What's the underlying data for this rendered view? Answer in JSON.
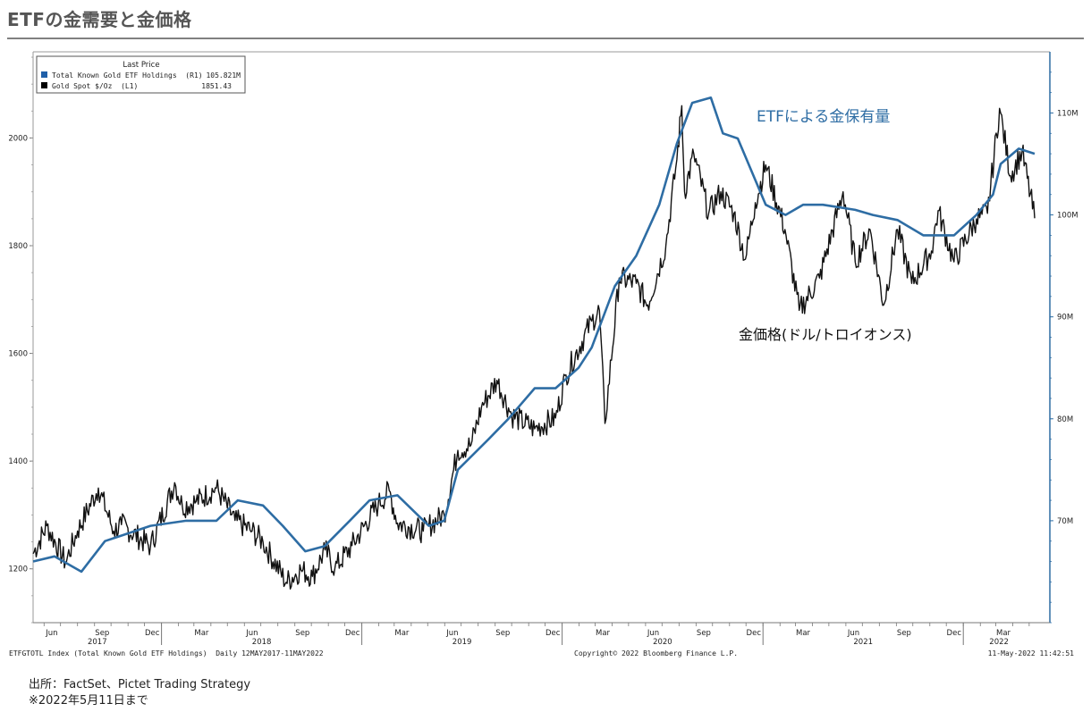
{
  "page": {
    "title": "ETFの金需要と金価格",
    "source": "出所：FactSet、Pictet Trading Strategy",
    "note": "※2022年5月11日まで"
  },
  "colors": {
    "etf": "#2e6da4",
    "gold": "#111111",
    "axis": "#2e6da4",
    "rule": "#808080"
  },
  "chart_data": {
    "type": "line",
    "legend": {
      "header": "Last Price",
      "items": [
        {
          "name": "Total Known Gold ETF Holdings  (R1)",
          "value": "105.821M",
          "color": "#1f5fa8"
        },
        {
          "name": "Gold Spot $/Oz  (L1)",
          "value": "1851.43",
          "color": "#000000"
        }
      ],
      "placement": "top-left"
    },
    "annotations": {
      "etf": "ETFによる金保有量",
      "gold": "金価格(ドル/トロイオンス)"
    },
    "x_axis": {
      "months": [
        "Jun",
        "Sep",
        "Dec",
        "Mar",
        "Jun",
        "Sep",
        "Dec",
        "Mar",
        "Jun",
        "Sep",
        "Dec",
        "Mar",
        "Jun",
        "Sep",
        "Dec",
        "Mar",
        "Jun",
        "Sep",
        "Dec",
        "Mar"
      ],
      "years": [
        "2017",
        "2018",
        "2019",
        "2020",
        "2021",
        "2022"
      ],
      "range": [
        "2017-05-12",
        "2022-05-11"
      ]
    },
    "y_left": {
      "ticks": [
        "1200",
        "1400",
        "1600",
        "1800",
        "2000"
      ],
      "values": [
        1200,
        1400,
        1600,
        1800,
        2000
      ],
      "ylim": [
        1100,
        2160
      ]
    },
    "y_right": {
      "ticks": [
        "70M",
        "80M",
        "90M",
        "100M",
        "110M"
      ],
      "values": [
        70,
        80,
        90,
        100,
        110
      ],
      "ylim": [
        60,
        116
      ]
    },
    "footer": {
      "left": "ETFGTOTL Index (Total Known Gold ETF Holdings)  Daily 12MAY2017-11MAY2022",
      "center": "Copyright© 2022 Bloomberg Finance L.P.",
      "right": "11-May-2022 11:42:51"
    },
    "series": [
      {
        "name": "Gold Spot $/Oz  (L1)",
        "axis": "left",
        "x": [
          "2017-05-12",
          "2017-06-06",
          "2017-07-10",
          "2017-08-01",
          "2017-09-08",
          "2017-10-06",
          "2017-10-20",
          "2017-12-12",
          "2018-01-25",
          "2018-02-08",
          "2018-03-05",
          "2018-04-11",
          "2018-05-15",
          "2018-06-15",
          "2018-07-05",
          "2018-08-16",
          "2018-09-12",
          "2018-10-03",
          "2018-10-26",
          "2018-11-13",
          "2018-12-14",
          "2019-01-31",
          "2019-02-20",
          "2019-03-07",
          "2019-04-23",
          "2019-05-03",
          "2019-05-31",
          "2019-06-25",
          "2019-07-19",
          "2019-08-07",
          "2019-09-04",
          "2019-10-01",
          "2019-11-12",
          "2019-12-20",
          "2020-01-08",
          "2020-02-24",
          "2020-03-09",
          "2020-03-19",
          "2020-04-14",
          "2020-05-15",
          "2020-06-05",
          "2020-07-08",
          "2020-07-28",
          "2020-08-06",
          "2020-08-11",
          "2020-08-28",
          "2020-09-24",
          "2020-10-16",
          "2020-11-09",
          "2020-11-30",
          "2020-12-18",
          "2021-01-06",
          "2021-02-10",
          "2021-03-08",
          "2021-04-14",
          "2021-05-27",
          "2021-06-18",
          "2021-07-15",
          "2021-08-09",
          "2021-09-03",
          "2021-09-29",
          "2021-11-04",
          "2021-11-16",
          "2021-12-15",
          "2022-01-25",
          "2022-02-14",
          "2022-03-08",
          "2022-03-28",
          "2022-04-18",
          "2022-05-11"
        ],
        "values": [
          1228,
          1280,
          1212,
          1270,
          1350,
          1270,
          1282,
          1242,
          1360,
          1316,
          1325,
          1350,
          1290,
          1270,
          1250,
          1175,
          1198,
          1186,
          1235,
          1201,
          1243,
          1320,
          1345,
          1285,
          1270,
          1280,
          1300,
          1420,
          1430,
          1500,
          1550,
          1485,
          1460,
          1480,
          1560,
          1660,
          1680,
          1470,
          1740,
          1730,
          1690,
          1800,
          1960,
          2060,
          1900,
          1970,
          1860,
          1900,
          1860,
          1775,
          1880,
          1950,
          1830,
          1680,
          1740,
          1900,
          1770,
          1830,
          1690,
          1830,
          1730,
          1790,
          1865,
          1770,
          1850,
          1860,
          2055,
          1930,
          1975,
          1851
        ]
      },
      {
        "name": "Total Known Gold ETF Holdings  (R1)",
        "axis": "right",
        "x": [
          "2017-05-12",
          "2017-06-20",
          "2017-08-08",
          "2017-09-20",
          "2017-12-12",
          "2018-02-15",
          "2018-04-11",
          "2018-05-20",
          "2018-07-05",
          "2018-08-10",
          "2018-09-20",
          "2018-10-25",
          "2018-12-10",
          "2019-01-15",
          "2019-03-07",
          "2019-05-03",
          "2019-05-31",
          "2019-06-25",
          "2019-08-20",
          "2019-09-25",
          "2019-11-12",
          "2019-12-20",
          "2020-01-31",
          "2020-02-24",
          "2020-04-06",
          "2020-05-15",
          "2020-06-26",
          "2020-07-28",
          "2020-08-25",
          "2020-09-28",
          "2020-10-20",
          "2020-11-16",
          "2021-01-06",
          "2021-02-11",
          "2021-03-15",
          "2021-04-20",
          "2021-06-18",
          "2021-07-20",
          "2021-09-03",
          "2021-10-20",
          "2021-12-15",
          "2022-01-25",
          "2022-02-24",
          "2022-03-10",
          "2022-04-12",
          "2022-05-11"
        ],
        "values": [
          66,
          66.5,
          65,
          68,
          69.5,
          70,
          70,
          72,
          71.5,
          69.5,
          67,
          67.5,
          70,
          72,
          72.5,
          69.5,
          70,
          75,
          78,
          80,
          83,
          83,
          85,
          87,
          93,
          96,
          101,
          107,
          111,
          111.5,
          108,
          107.5,
          101,
          100,
          101,
          101,
          100.5,
          100,
          99.5,
          98,
          98,
          100,
          102,
          105,
          106.5,
          106
        ]
      }
    ]
  }
}
